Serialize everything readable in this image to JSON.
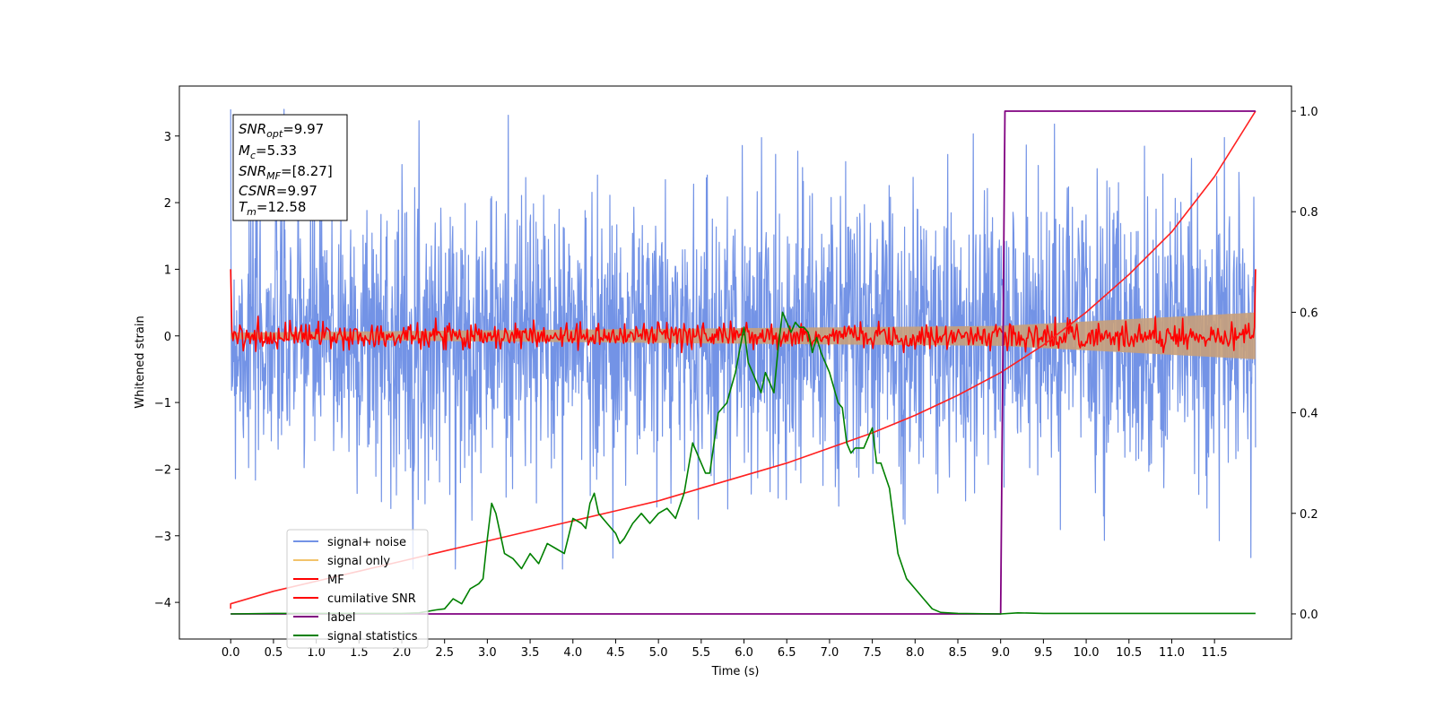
{
  "chart_data": {
    "type": "line",
    "xlabel": "Time (s)",
    "ylabel": "Whitened strain",
    "xlim": [
      -0.6,
      12.4
    ],
    "ylim": [
      -4.55,
      3.75
    ],
    "y2lim": [
      -0.05,
      1.05
    ],
    "xticks": [
      "0.0",
      "0.5",
      "1.0",
      "1.5",
      "2.0",
      "2.5",
      "3.0",
      "3.5",
      "4.0",
      "4.5",
      "5.0",
      "5.5",
      "6.0",
      "6.5",
      "7.0",
      "7.5",
      "8.0",
      "8.5",
      "9.0",
      "9.5",
      "10.0",
      "10.5",
      "11.0",
      "11.5"
    ],
    "yticks": [
      "3",
      "2",
      "1",
      "0",
      "−1",
      "−2",
      "−3",
      "−4"
    ],
    "y2ticks": [
      "1.0",
      "0.8",
      "0.6",
      "0.4",
      "0.2",
      "0.0"
    ],
    "annotation": {
      "snr_opt": {
        "base": "SNR",
        "sub": "opt",
        "value": "=9.97"
      },
      "mc": {
        "base": "M",
        "sub": "c",
        "value": "=5.33"
      },
      "snr_mf": {
        "base": "SNR",
        "sub": "MF",
        "value": "=[8.27]"
      },
      "csnr": {
        "base": "CSNR",
        "sub": "",
        "value": "=9.97"
      },
      "tm": {
        "base": "T",
        "sub": "m",
        "value": "=12.58"
      }
    },
    "legend": {
      "position": "lower-left",
      "entries": [
        {
          "label": "signal+ noise",
          "color": "#7393e6"
        },
        {
          "label": "signal only",
          "color": "#f2c36b"
        },
        {
          "label": "MF",
          "color": "#ff0000"
        },
        {
          "label": "cumilative SNR",
          "color": "#ff0000"
        },
        {
          "label": "label",
          "color": "#800080"
        },
        {
          "label": "signal statistics",
          "color": "#008000"
        }
      ]
    },
    "colors": {
      "noise": "#7393e6",
      "signal_fill": "#c8a07a",
      "mf": "#ff0000",
      "csnr": "#ff2020",
      "label": "#800080",
      "stats": "#008000"
    },
    "series": [
      {
        "name": "signal+ noise",
        "axis": "left",
        "description_range": [
          -3.5,
          3.4
        ],
        "t_start": 0.0,
        "t_end": 11.98
      },
      {
        "name": "signal only",
        "axis": "left",
        "envelope_amplitude_t": [
          0.0,
          9.0,
          11.98
        ],
        "envelope_amplitude_y": [
          0.05,
          0.15,
          0.35
        ]
      },
      {
        "name": "MF",
        "axis": "left",
        "t_start": 0.0,
        "t_end": 11.98,
        "start_value": 1.0,
        "end_value": 1.0
      },
      {
        "name": "cumilative SNR",
        "axis": "right",
        "t": [
          0.0,
          0.0,
          0.5,
          1.0,
          1.5,
          2.0,
          2.5,
          3.0,
          3.5,
          4.0,
          4.5,
          5.0,
          5.5,
          6.0,
          6.5,
          7.0,
          7.5,
          8.0,
          8.5,
          9.0,
          9.5,
          10.0,
          10.5,
          11.0,
          11.5,
          11.98
        ],
        "y": [
          0.01,
          0.02,
          0.045,
          0.065,
          0.085,
          0.105,
          0.125,
          0.145,
          0.165,
          0.185,
          0.205,
          0.225,
          0.25,
          0.275,
          0.3,
          0.33,
          0.36,
          0.395,
          0.435,
          0.48,
          0.535,
          0.6,
          0.675,
          0.76,
          0.87,
          1.0
        ]
      },
      {
        "name": "label",
        "axis": "right",
        "t": [
          0.0,
          9.0,
          9.05,
          11.98
        ],
        "y": [
          0.0,
          0.0,
          1.0,
          1.0
        ]
      },
      {
        "name": "signal statistics",
        "axis": "right",
        "t": [
          0.0,
          0.5,
          1.0,
          1.5,
          2.0,
          2.2,
          2.4,
          2.5,
          2.6,
          2.7,
          2.8,
          2.9,
          2.95,
          3.0,
          3.05,
          3.1,
          3.2,
          3.3,
          3.4,
          3.5,
          3.6,
          3.7,
          3.8,
          3.9,
          4.0,
          4.1,
          4.15,
          4.2,
          4.25,
          4.3,
          4.4,
          4.5,
          4.55,
          4.6,
          4.7,
          4.8,
          4.9,
          5.0,
          5.1,
          5.2,
          5.3,
          5.4,
          5.5,
          5.55,
          5.6,
          5.7,
          5.8,
          5.85,
          5.9,
          6.0,
          6.05,
          6.1,
          6.2,
          6.25,
          6.3,
          6.35,
          6.4,
          6.45,
          6.5,
          6.55,
          6.6,
          6.65,
          6.7,
          6.75,
          6.8,
          6.85,
          6.9,
          7.0,
          7.1,
          7.15,
          7.2,
          7.25,
          7.3,
          7.4,
          7.5,
          7.55,
          7.6,
          7.7,
          7.8,
          7.9,
          8.0,
          8.1,
          8.2,
          8.3,
          8.5,
          9.0,
          9.2,
          9.5,
          10.0,
          11.0,
          11.6,
          11.98
        ],
        "y": [
          0.0,
          0.001,
          0.001,
          0.001,
          0.001,
          0.002,
          0.008,
          0.01,
          0.03,
          0.02,
          0.05,
          0.06,
          0.07,
          0.15,
          0.22,
          0.2,
          0.12,
          0.11,
          0.09,
          0.12,
          0.1,
          0.14,
          0.13,
          0.12,
          0.19,
          0.18,
          0.17,
          0.22,
          0.24,
          0.2,
          0.18,
          0.16,
          0.14,
          0.15,
          0.18,
          0.2,
          0.18,
          0.2,
          0.21,
          0.19,
          0.24,
          0.34,
          0.3,
          0.28,
          0.28,
          0.4,
          0.42,
          0.45,
          0.48,
          0.57,
          0.5,
          0.48,
          0.44,
          0.48,
          0.46,
          0.44,
          0.53,
          0.6,
          0.58,
          0.56,
          0.58,
          0.57,
          0.57,
          0.56,
          0.52,
          0.55,
          0.52,
          0.48,
          0.42,
          0.41,
          0.34,
          0.32,
          0.33,
          0.33,
          0.37,
          0.3,
          0.3,
          0.25,
          0.12,
          0.07,
          0.05,
          0.03,
          0.01,
          0.003,
          0.001,
          0.0,
          0.002,
          0.001,
          0.001,
          0.001,
          0.001,
          0.001
        ]
      }
    ]
  }
}
